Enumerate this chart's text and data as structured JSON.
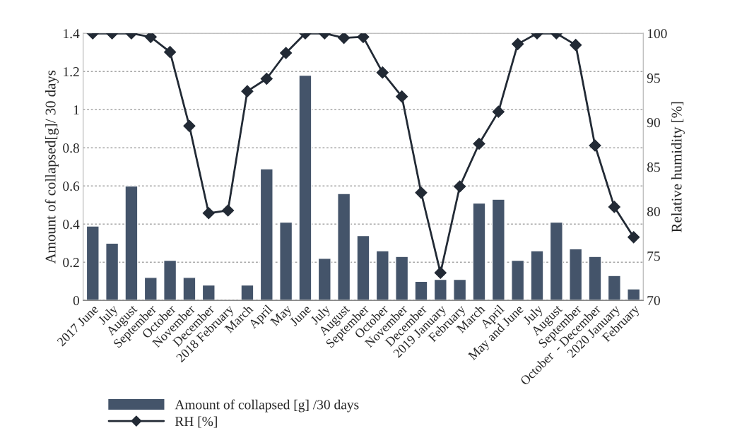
{
  "chart_data": {
    "type": "bar",
    "categories": [
      "2017 June",
      "July",
      "August",
      "September",
      "October",
      "November",
      "December",
      "2018 February",
      "March",
      "April",
      "May",
      "June",
      "July",
      "August",
      "September",
      "October",
      "November",
      "December",
      "2019 January",
      "February",
      "March",
      "April",
      "May and June",
      "July",
      "August",
      "September",
      "October  - December",
      "2020 January",
      "February"
    ],
    "series": [
      {
        "name": "Amount of collapsed [g] /30 days",
        "color": "#44546a",
        "values": [
          0.39,
          0.3,
          0.6,
          0.12,
          0.21,
          0.12,
          0.08,
          null,
          0.08,
          0.69,
          0.41,
          1.18,
          0.22,
          0.56,
          0.34,
          0.26,
          0.23,
          0.1,
          0.11,
          0.11,
          0.51,
          0.53,
          0.21,
          0.26,
          0.41,
          0.27,
          0.23,
          0.13,
          0.06
        ]
      },
      {
        "name": "RH [%]",
        "type": "line",
        "axis": "y2",
        "color": "#222a35",
        "marker": "diamond",
        "line_style": "solid",
        "values": [
          100,
          100,
          100,
          99.6,
          97.9,
          89.6,
          79.8,
          80.1,
          93.5,
          94.9,
          97.8,
          100,
          100,
          99.5,
          99.6,
          95.6,
          92.9,
          82.1,
          73.1,
          82.8,
          87.6,
          91.2,
          98.8,
          100,
          100,
          98.7,
          87.4,
          80.5,
          77.1
        ]
      }
    ],
    "ylabel": "Amount of collapsed[g]/ 30 days",
    "y2label": "Relative humidity [%]",
    "ylim": [
      0,
      1.4
    ],
    "yticks": [
      0,
      0.2,
      0.4,
      0.6,
      0.8,
      1,
      1.2,
      1.4
    ],
    "y2lim": [
      70,
      100
    ],
    "y2ticks": [
      70,
      75,
      80,
      85,
      90,
      95,
      100
    ],
    "grid": "y",
    "legend": "bottom left"
  }
}
